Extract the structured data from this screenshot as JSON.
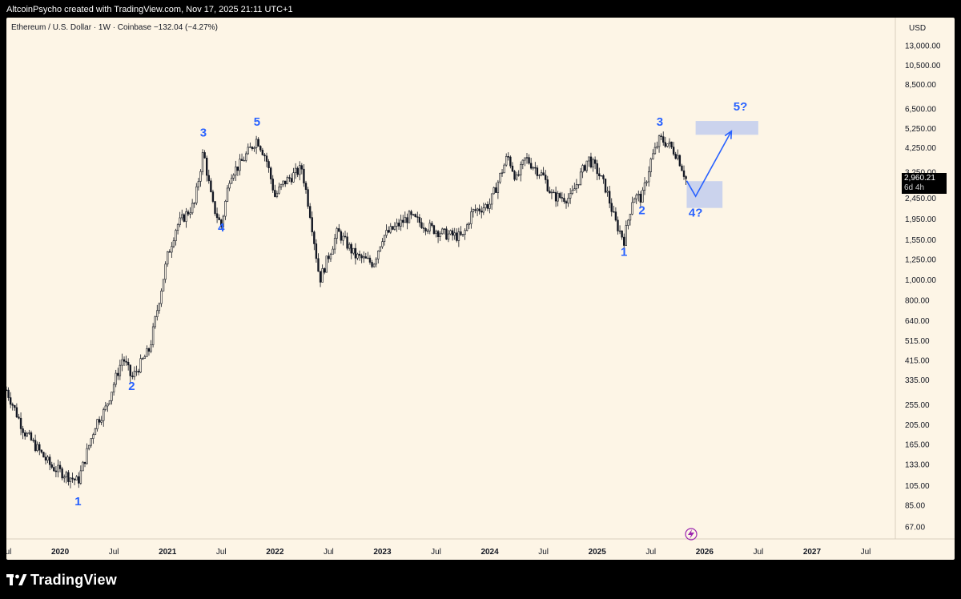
{
  "header": {
    "attribution": "AltcoinPsycho created with TradingView.com, Nov 17, 2025 21:11 UTC+1"
  },
  "chart": {
    "legend_text": "Ethereum / U.S. Dollar · 1W · Coinbase  −132.04 (−4.27%)",
    "currency_label": "USD",
    "current_price": "2,960.21",
    "countdown": "6d 4h"
  },
  "chart_data": {
    "type": "candlestick",
    "symbol": "Ethereum / U.S. Dollar",
    "interval": "1W",
    "exchange": "Coinbase",
    "change": "−132.04 (−4.27%)",
    "y_scale": "log",
    "ylim": [
      60,
      14500
    ],
    "y_ticks": [
      "13,000.00",
      "10,500.00",
      "8,500.00",
      "6,500.00",
      "5,250.00",
      "4,250.00",
      "3,250.00",
      "2,450.00",
      "1,950.00",
      "1,550.00",
      "1,250.00",
      "1,000.00",
      "800.00",
      "640.00",
      "515.00",
      "415.00",
      "335.00",
      "255.00",
      "205.00",
      "165.00",
      "133.00",
      "105.00",
      "85.00",
      "67.00"
    ],
    "x_ticks": [
      "Jul",
      "2020",
      "Jul",
      "2021",
      "Jul",
      "2022",
      "Jul",
      "2023",
      "Jul",
      "2024",
      "Jul",
      "2025",
      "Jul",
      "2026",
      "Jul",
      "2027",
      "Jul"
    ],
    "current_price": 2960.21,
    "price_path": [
      [
        "2019-07",
        300
      ],
      [
        "2019-09",
        190
      ],
      [
        "2019-12",
        130
      ],
      [
        "2020-03",
        110
      ],
      [
        "2020-05",
        210
      ],
      [
        "2020-06",
        240
      ],
      [
        "2020-08",
        430
      ],
      [
        "2020-09",
        340
      ],
      [
        "2020-11",
        470
      ],
      [
        "2021-01",
        1300
      ],
      [
        "2021-02",
        1800
      ],
      [
        "2021-04",
        2300
      ],
      [
        "2021-05",
        4100
      ],
      [
        "2021-06",
        2300
      ],
      [
        "2021-07",
        1800
      ],
      [
        "2021-08",
        3200
      ],
      [
        "2021-09",
        3500
      ],
      [
        "2021-11",
        4700
      ],
      [
        "2021-12",
        3800
      ],
      [
        "2022-01",
        2500
      ],
      [
        "2022-02",
        2900
      ],
      [
        "2022-04",
        3400
      ],
      [
        "2022-05",
        2000
      ],
      [
        "2022-06",
        1000
      ],
      [
        "2022-08",
        1700
      ],
      [
        "2022-10",
        1300
      ],
      [
        "2022-12",
        1200
      ],
      [
        "2023-01",
        1600
      ],
      [
        "2023-04",
        2000
      ],
      [
        "2023-06",
        1800
      ],
      [
        "2023-08",
        1650
      ],
      [
        "2023-10",
        1600
      ],
      [
        "2023-11",
        2100
      ],
      [
        "2024-01",
        2300
      ],
      [
        "2024-03",
        3900
      ],
      [
        "2024-04",
        3000
      ],
      [
        "2024-05",
        3800
      ],
      [
        "2024-07",
        3100
      ],
      [
        "2024-08",
        2500
      ],
      [
        "2024-10",
        2450
      ],
      [
        "2024-12",
        3800
      ],
      [
        "2025-01",
        3300
      ],
      [
        "2025-02",
        2700
      ],
      [
        "2025-03",
        1900
      ],
      [
        "2025-04",
        1550
      ],
      [
        "2025-05",
        2500
      ],
      [
        "2025-06",
        2450
      ],
      [
        "2025-07",
        3700
      ],
      [
        "2025-08",
        4700
      ],
      [
        "2025-09",
        4400
      ],
      [
        "2025-10",
        3900
      ],
      [
        "2025-11",
        2960
      ]
    ],
    "wave_labels": [
      {
        "label": "1",
        "date": "2020-03",
        "price": 85
      },
      {
        "label": "2",
        "date": "2020-09",
        "price": 300
      },
      {
        "label": "3",
        "date": "2021-05",
        "price": 4800
      },
      {
        "label": "4",
        "date": "2021-07",
        "price": 1700
      },
      {
        "label": "5",
        "date": "2021-11",
        "price": 5400
      },
      {
        "label": "1",
        "date": "2025-04",
        "price": 1300
      },
      {
        "label": "2",
        "date": "2025-06",
        "price": 2050
      },
      {
        "label": "3",
        "date": "2025-08",
        "price": 5400
      },
      {
        "label": "4?",
        "date": "2025-12",
        "price": 2000
      },
      {
        "label": "5?",
        "date": "2026-05",
        "price": 6400
      }
    ],
    "zones": [
      {
        "name": "target-zone-4",
        "date_start": "2025-11",
        "date_end": "2026-03",
        "price_low": 2200,
        "price_high": 2950
      },
      {
        "name": "target-zone-5",
        "date_start": "2025-12",
        "date_end": "2026-07",
        "price_low": 4900,
        "price_high": 5700
      }
    ],
    "projection": [
      [
        "2025-11",
        2960
      ],
      [
        "2025-12",
        2500
      ],
      [
        "2026-04",
        5100
      ]
    ]
  },
  "colors": {
    "background": "#fdf5e6",
    "candles": "#131722",
    "wave_labels": "#2962ff",
    "zone": "#b9c7ef",
    "projection": "#2962ff"
  },
  "footer": {
    "logo_text": "TradingView"
  }
}
